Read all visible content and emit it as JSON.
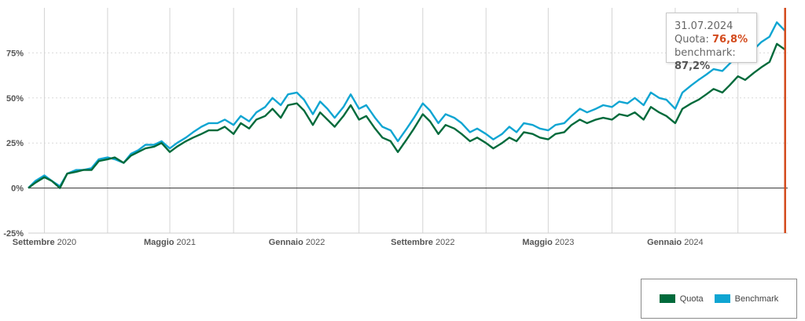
{
  "chart_data": {
    "type": "line",
    "title": "",
    "xlabel": "",
    "ylabel": "",
    "ylim": [
      -25,
      100
    ],
    "y_ticks": [
      "-25%",
      "0%",
      "25%",
      "50%",
      "75%"
    ],
    "y_tick_values": [
      -25,
      0,
      25,
      50,
      75
    ],
    "x_ticks": [
      {
        "month": "Settembre",
        "year": "2020",
        "date": "2020-09-01"
      },
      {
        "month": "Maggio",
        "year": "2021",
        "date": "2021-05-01"
      },
      {
        "month": "Gennaio",
        "year": "2022",
        "date": "2022-01-01"
      },
      {
        "month": "Settembre",
        "year": "2022",
        "date": "2022-09-01"
      },
      {
        "month": "Maggio",
        "year": "2023",
        "date": "2023-05-01"
      },
      {
        "month": "Gennaio",
        "year": "2024",
        "date": "2024-01-01"
      }
    ],
    "x_range": [
      "2020-08-01",
      "2024-08-05"
    ],
    "x_grid_dates": [
      "2020-09-01",
      "2021-01-01",
      "2021-05-01",
      "2021-09-01",
      "2022-01-01",
      "2022-05-01",
      "2022-09-01",
      "2023-01-01",
      "2023-05-01",
      "2023-09-01",
      "2024-01-01",
      "2024-05-01"
    ],
    "grid": true,
    "legend": "bottom-right",
    "series": [
      {
        "name": "Quota",
        "color": "#006a3b",
        "x": [
          "2020-08-01",
          "2020-08-15",
          "2020-09-01",
          "2020-09-15",
          "2020-10-01",
          "2020-10-15",
          "2020-11-01",
          "2020-11-15",
          "2020-12-01",
          "2020-12-15",
          "2021-01-01",
          "2021-01-15",
          "2021-02-01",
          "2021-02-15",
          "2021-03-01",
          "2021-03-15",
          "2021-04-01",
          "2021-04-15",
          "2021-05-01",
          "2021-05-15",
          "2021-06-01",
          "2021-06-15",
          "2021-07-01",
          "2021-07-15",
          "2021-08-01",
          "2021-08-15",
          "2021-09-01",
          "2021-09-15",
          "2021-10-01",
          "2021-10-15",
          "2021-11-01",
          "2021-11-15",
          "2021-12-01",
          "2021-12-15",
          "2022-01-01",
          "2022-01-15",
          "2022-02-01",
          "2022-02-15",
          "2022-03-01",
          "2022-03-15",
          "2022-04-01",
          "2022-04-15",
          "2022-05-01",
          "2022-05-15",
          "2022-06-01",
          "2022-06-15",
          "2022-07-01",
          "2022-07-15",
          "2022-08-01",
          "2022-08-15",
          "2022-09-01",
          "2022-09-15",
          "2022-10-01",
          "2022-10-15",
          "2022-11-01",
          "2022-11-15",
          "2022-12-01",
          "2022-12-15",
          "2023-01-01",
          "2023-01-15",
          "2023-02-01",
          "2023-02-15",
          "2023-03-01",
          "2023-03-15",
          "2023-04-01",
          "2023-04-15",
          "2023-05-01",
          "2023-05-15",
          "2023-06-01",
          "2023-06-15",
          "2023-07-01",
          "2023-07-15",
          "2023-08-01",
          "2023-08-15",
          "2023-09-01",
          "2023-09-15",
          "2023-10-01",
          "2023-10-15",
          "2023-11-01",
          "2023-11-15",
          "2023-12-01",
          "2023-12-15",
          "2024-01-01",
          "2024-01-15",
          "2024-02-01",
          "2024-02-15",
          "2024-03-01",
          "2024-03-15",
          "2024-04-01",
          "2024-04-15",
          "2024-05-01",
          "2024-05-15",
          "2024-06-01",
          "2024-06-15",
          "2024-07-01",
          "2024-07-15",
          "2024-07-31"
        ],
        "values": [
          0,
          3,
          6,
          4,
          0,
          8,
          9,
          10,
          10,
          15,
          16,
          17,
          14,
          18,
          20,
          22,
          23,
          25,
          20,
          23,
          26,
          28,
          30,
          32,
          32,
          34,
          30,
          36,
          33,
          38,
          40,
          44,
          39,
          46,
          47,
          43,
          35,
          42,
          38,
          34,
          40,
          46,
          38,
          40,
          33,
          28,
          26,
          20,
          27,
          33,
          41,
          37,
          30,
          35,
          33,
          30,
          26,
          28,
          25,
          22,
          25,
          28,
          26,
          31,
          30,
          28,
          27,
          30,
          31,
          35,
          38,
          36,
          38,
          39,
          38,
          41,
          40,
          42,
          38,
          45,
          42,
          40,
          36,
          44,
          47,
          49,
          52,
          55,
          53,
          57,
          62,
          60,
          64,
          67,
          70,
          80,
          76.8
        ]
      },
      {
        "name": "Benchmark",
        "color": "#0fa5d2",
        "x": [
          "2020-08-01",
          "2020-08-15",
          "2020-09-01",
          "2020-09-15",
          "2020-10-01",
          "2020-10-15",
          "2020-11-01",
          "2020-11-15",
          "2020-12-01",
          "2020-12-15",
          "2021-01-01",
          "2021-01-15",
          "2021-02-01",
          "2021-02-15",
          "2021-03-01",
          "2021-03-15",
          "2021-04-01",
          "2021-04-15",
          "2021-05-01",
          "2021-05-15",
          "2021-06-01",
          "2021-06-15",
          "2021-07-01",
          "2021-07-15",
          "2021-08-01",
          "2021-08-15",
          "2021-09-01",
          "2021-09-15",
          "2021-10-01",
          "2021-10-15",
          "2021-11-01",
          "2021-11-15",
          "2021-12-01",
          "2021-12-15",
          "2022-01-01",
          "2022-01-15",
          "2022-02-01",
          "2022-02-15",
          "2022-03-01",
          "2022-03-15",
          "2022-04-01",
          "2022-04-15",
          "2022-05-01",
          "2022-05-15",
          "2022-06-01",
          "2022-06-15",
          "2022-07-01",
          "2022-07-15",
          "2022-08-01",
          "2022-08-15",
          "2022-09-01",
          "2022-09-15",
          "2022-10-01",
          "2022-10-15",
          "2022-11-01",
          "2022-11-15",
          "2022-12-01",
          "2022-12-15",
          "2023-01-01",
          "2023-01-15",
          "2023-02-01",
          "2023-02-15",
          "2023-03-01",
          "2023-03-15",
          "2023-04-01",
          "2023-04-15",
          "2023-05-01",
          "2023-05-15",
          "2023-06-01",
          "2023-06-15",
          "2023-07-01",
          "2023-07-15",
          "2023-08-01",
          "2023-08-15",
          "2023-09-01",
          "2023-09-15",
          "2023-10-01",
          "2023-10-15",
          "2023-11-01",
          "2023-11-15",
          "2023-12-01",
          "2023-12-15",
          "2024-01-01",
          "2024-01-15",
          "2024-02-01",
          "2024-02-15",
          "2024-03-01",
          "2024-03-15",
          "2024-04-01",
          "2024-04-15",
          "2024-05-01",
          "2024-05-15",
          "2024-06-01",
          "2024-06-15",
          "2024-07-01",
          "2024-07-15",
          "2024-07-31"
        ],
        "values": [
          0,
          4,
          7,
          4,
          1,
          8,
          10,
          10,
          11,
          16,
          17,
          16,
          14,
          19,
          21,
          24,
          24,
          26,
          22,
          25,
          28,
          31,
          34,
          36,
          36,
          38,
          35,
          40,
          37,
          42,
          45,
          50,
          46,
          52,
          53,
          49,
          41,
          48,
          44,
          39,
          45,
          52,
          44,
          46,
          39,
          34,
          32,
          26,
          33,
          39,
          47,
          43,
          36,
          41,
          39,
          36,
          31,
          33,
          30,
          27,
          30,
          34,
          31,
          36,
          35,
          33,
          32,
          35,
          36,
          40,
          44,
          42,
          44,
          46,
          45,
          48,
          47,
          50,
          46,
          53,
          50,
          49,
          44,
          53,
          57,
          60,
          63,
          66,
          65,
          69,
          74,
          72,
          77,
          81,
          84,
          92,
          87.2
        ]
      }
    ],
    "tooltip": {
      "date": "31.07.2024",
      "quota_label": "Quota: ",
      "quota_value": "76,8%",
      "benchmark_label": "benchmark: ",
      "benchmark_value": "87,2%"
    },
    "cursor_date": "2024-07-31",
    "cursor_color": "#d34a1c"
  },
  "legend": {
    "items": [
      {
        "label": "Quota",
        "color": "#006a3b"
      },
      {
        "label": "Benchmark",
        "color": "#0fa5d2"
      }
    ]
  }
}
